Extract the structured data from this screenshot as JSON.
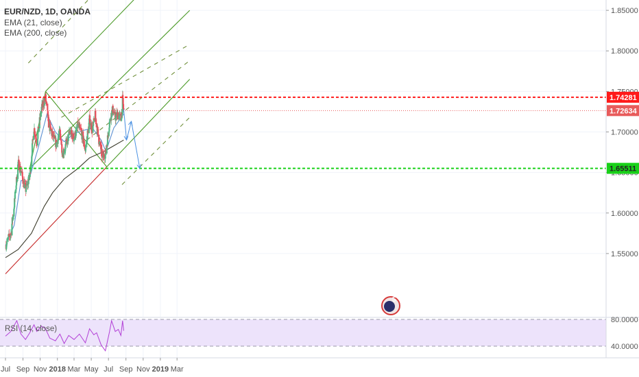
{
  "header": {
    "symbol_line": "EUR/NZD, 1D, OANDA",
    "ema21_label": "EMA (21, close)",
    "ema200_label": "EMA (200, close)"
  },
  "rsi_panel": {
    "label": "RSI (14, close)",
    "bands": [
      40.0,
      80.0
    ],
    "fill_color": "#ede3fb",
    "line_color": "#b23fd6"
  },
  "colors": {
    "bull_candle": "#53b987",
    "bear_candle": "#eb4d5c",
    "ema21": "#5b8fd1",
    "ema200": "#3a3a2a",
    "channel": "#4c9a29",
    "resistance": "#ff1a1a",
    "support": "#19d119",
    "uptrend": "#c62828",
    "projection": "#4a90e2"
  },
  "chart_data": {
    "type": "candlestick",
    "title": "EUR/NZD, 1D, OANDA",
    "ylim": [
      1.52,
      1.88
    ],
    "y_ticks": [
      1.55,
      1.6,
      1.65,
      1.7,
      1.75,
      1.8,
      1.85
    ],
    "y_tick_labels": [
      "1.55000",
      "1.60000",
      "1.65000",
      "1.70000",
      "1.75000",
      "1.80000",
      "1.85000"
    ],
    "x_axis": {
      "start": "2017-07-01",
      "ticks": [
        {
          "label": "Jul",
          "date": "2017-07-01"
        },
        {
          "label": "Sep",
          "date": "2017-09-01"
        },
        {
          "label": "Nov",
          "date": "2017-11-01"
        },
        {
          "label": "2018",
          "date": "2018-01-01",
          "bold": true
        },
        {
          "label": "Mar",
          "date": "2018-03-01"
        },
        {
          "label": "May",
          "date": "2018-05-01"
        },
        {
          "label": "Jul",
          "date": "2018-07-01"
        },
        {
          "label": "Sep",
          "date": "2018-09-01"
        },
        {
          "label": "Nov",
          "date": "2018-11-01"
        },
        {
          "label": "2019",
          "date": "2019-01-01",
          "bold": true
        },
        {
          "label": "Mar",
          "date": "2019-03-01"
        }
      ]
    },
    "price_path": [
      {
        "date": "2017-07-01",
        "close": 1.56
      },
      {
        "date": "2017-07-20",
        "close": 1.575
      },
      {
        "date": "2017-08-01",
        "close": 1.61
      },
      {
        "date": "2017-08-15",
        "close": 1.662
      },
      {
        "date": "2017-08-25",
        "close": 1.652
      },
      {
        "date": "2017-09-10",
        "close": 1.628
      },
      {
        "date": "2017-09-25",
        "close": 1.645
      },
      {
        "date": "2017-10-10",
        "close": 1.705
      },
      {
        "date": "2017-10-20",
        "close": 1.688
      },
      {
        "date": "2017-11-05",
        "close": 1.728
      },
      {
        "date": "2017-11-20",
        "close": 1.742
      },
      {
        "date": "2017-12-01",
        "close": 1.71
      },
      {
        "date": "2017-12-15",
        "close": 1.695
      },
      {
        "date": "2017-12-28",
        "close": 1.685
      },
      {
        "date": "2018-01-10",
        "close": 1.7
      },
      {
        "date": "2018-01-20",
        "close": 1.672
      },
      {
        "date": "2018-02-01",
        "close": 1.685
      },
      {
        "date": "2018-02-15",
        "close": 1.7
      },
      {
        "date": "2018-03-01",
        "close": 1.692
      },
      {
        "date": "2018-03-15",
        "close": 1.708
      },
      {
        "date": "2018-03-28",
        "close": 1.698
      },
      {
        "date": "2018-04-10",
        "close": 1.678
      },
      {
        "date": "2018-04-25",
        "close": 1.715
      },
      {
        "date": "2018-05-05",
        "close": 1.702
      },
      {
        "date": "2018-05-15",
        "close": 1.72
      },
      {
        "date": "2018-05-28",
        "close": 1.69
      },
      {
        "date": "2018-06-10",
        "close": 1.668
      },
      {
        "date": "2018-06-22",
        "close": 1.675
      },
      {
        "date": "2018-07-05",
        "close": 1.712
      },
      {
        "date": "2018-07-15",
        "close": 1.728
      },
      {
        "date": "2018-07-25",
        "close": 1.718
      },
      {
        "date": "2018-08-05",
        "close": 1.722
      },
      {
        "date": "2018-08-14",
        "close": 1.715
      },
      {
        "date": "2018-08-20",
        "close": 1.74
      },
      {
        "date": "2018-08-24",
        "close": 1.726
      }
    ],
    "ema21": [
      {
        "date": "2017-07-01",
        "value": 1.56
      },
      {
        "date": "2017-08-01",
        "value": 1.585
      },
      {
        "date": "2017-08-25",
        "value": 1.64
      },
      {
        "date": "2017-09-20",
        "value": 1.638
      },
      {
        "date": "2017-10-25",
        "value": 1.68
      },
      {
        "date": "2017-11-25",
        "value": 1.722
      },
      {
        "date": "2017-12-25",
        "value": 1.7
      },
      {
        "date": "2018-01-25",
        "value": 1.688
      },
      {
        "date": "2018-03-01",
        "value": 1.698
      },
      {
        "date": "2018-04-05",
        "value": 1.702
      },
      {
        "date": "2018-05-05",
        "value": 1.705
      },
      {
        "date": "2018-06-05",
        "value": 1.69
      },
      {
        "date": "2018-06-22",
        "value": 1.676
      },
      {
        "date": "2018-07-20",
        "value": 1.705
      },
      {
        "date": "2018-08-24",
        "value": 1.722
      }
    ],
    "ema200": [
      {
        "date": "2017-07-01",
        "value": 1.545
      },
      {
        "date": "2017-08-15",
        "value": 1.555
      },
      {
        "date": "2017-10-01",
        "value": 1.575
      },
      {
        "date": "2017-11-15",
        "value": 1.608
      },
      {
        "date": "2017-12-15",
        "value": 1.625
      },
      {
        "date": "2018-01-25",
        "value": 1.642
      },
      {
        "date": "2018-03-15",
        "value": 1.655
      },
      {
        "date": "2018-04-25",
        "value": 1.668
      },
      {
        "date": "2018-06-15",
        "value": 1.676
      },
      {
        "date": "2018-07-20",
        "value": 1.683
      },
      {
        "date": "2018-08-24",
        "value": 1.69
      }
    ],
    "horizontal_levels": [
      {
        "name": "resistance",
        "value": 1.74281,
        "label": "1.74281",
        "style": "dashed",
        "color": "#ff1a1a"
      },
      {
        "name": "last-price",
        "value": 1.72634,
        "label": "1.72634",
        "style": "dotted",
        "color": "#e85b5b"
      },
      {
        "name": "support",
        "value": 1.65511,
        "label": "1.65511",
        "style": "dashed",
        "color": "#19d119"
      }
    ],
    "trendlines": [
      {
        "name": "uptrend-support",
        "color": "#c62828",
        "style": "solid",
        "from": {
          "date": "2017-07-01",
          "value": 1.525
        },
        "to": {
          "date": "2018-06-25",
          "value": 1.657
        }
      },
      {
        "name": "pitchfork-upper-leg",
        "color": "#4c9a29",
        "style": "solid",
        "from": {
          "date": "2017-09-25",
          "value": 1.655
        },
        "to": {
          "date": "2017-11-20",
          "value": 1.75
        }
      },
      {
        "name": "pitchfork-diagonal",
        "color": "#4c9a29",
        "style": "solid",
        "from": {
          "date": "2017-11-20",
          "value": 1.75
        },
        "to": {
          "date": "2018-06-25",
          "value": 1.657
        }
      },
      {
        "name": "channel-line-1",
        "color": "#4c9a29",
        "style": "solid",
        "from": {
          "date": "2017-11-20",
          "value": 1.75
        },
        "to": {
          "date": "2018-11-15",
          "value": 1.88
        }
      },
      {
        "name": "channel-line-2",
        "color": "#4c9a29",
        "style": "solid",
        "from": {
          "date": "2017-09-25",
          "value": 1.655
        },
        "to": {
          "date": "2019-04-15",
          "value": 1.85
        }
      },
      {
        "name": "channel-line-3",
        "color": "#4c9a29",
        "style": "solid",
        "from": {
          "date": "2018-06-25",
          "value": 1.657
        },
        "to": {
          "date": "2019-04-15",
          "value": 1.765
        }
      },
      {
        "name": "channel-dashed-1",
        "color": "#6f8f3a",
        "style": "dashed",
        "from": {
          "date": "2017-09-20",
          "value": 1.785
        },
        "to": {
          "date": "2019-04-15",
          "value": 1.995
        }
      },
      {
        "name": "channel-dashed-2",
        "color": "#6f8f3a",
        "style": "dashed",
        "from": {
          "date": "2018-01-15",
          "value": 1.718
        },
        "to": {
          "date": "2019-04-15",
          "value": 1.808
        }
      },
      {
        "name": "channel-dashed-3",
        "color": "#6f8f3a",
        "style": "dashed",
        "from": {
          "date": "2018-04-15",
          "value": 1.69
        },
        "to": {
          "date": "2019-04-15",
          "value": 1.788
        }
      },
      {
        "name": "channel-dashed-4",
        "color": "#6f8f3a",
        "style": "dashed",
        "from": {
          "date": "2018-08-18",
          "value": 1.635
        },
        "to": {
          "date": "2019-04-15",
          "value": 1.718
        }
      }
    ],
    "projection": [
      {
        "date": "2018-08-24",
        "value": 1.728
      },
      {
        "date": "2018-09-03",
        "value": 1.69
      },
      {
        "date": "2018-09-20",
        "value": 1.713
      },
      {
        "date": "2018-10-20",
        "value": 1.655
      }
    ],
    "rsi": {
      "ylim": [
        30,
        85
      ],
      "ticks": [
        40.0,
        80.0
      ],
      "tick_labels": [
        "40.0000",
        "80.0000"
      ],
      "values": [
        {
          "date": "2017-07-01",
          "value": 55
        },
        {
          "date": "2017-07-20",
          "value": 62
        },
        {
          "date": "2017-08-10",
          "value": 78
        },
        {
          "date": "2017-08-25",
          "value": 58
        },
        {
          "date": "2017-09-10",
          "value": 50
        },
        {
          "date": "2017-09-25",
          "value": 60
        },
        {
          "date": "2017-10-10",
          "value": 72
        },
        {
          "date": "2017-10-20",
          "value": 62
        },
        {
          "date": "2017-11-05",
          "value": 70
        },
        {
          "date": "2017-11-20",
          "value": 66
        },
        {
          "date": "2017-12-05",
          "value": 52
        },
        {
          "date": "2017-12-25",
          "value": 48
        },
        {
          "date": "2018-01-10",
          "value": 58
        },
        {
          "date": "2018-01-25",
          "value": 44
        },
        {
          "date": "2018-02-10",
          "value": 56
        },
        {
          "date": "2018-03-01",
          "value": 50
        },
        {
          "date": "2018-03-20",
          "value": 58
        },
        {
          "date": "2018-04-10",
          "value": 45
        },
        {
          "date": "2018-04-25",
          "value": 66
        },
        {
          "date": "2018-05-10",
          "value": 57
        },
        {
          "date": "2018-05-20",
          "value": 60
        },
        {
          "date": "2018-06-05",
          "value": 42
        },
        {
          "date": "2018-06-20",
          "value": 33
        },
        {
          "date": "2018-07-05",
          "value": 62
        },
        {
          "date": "2018-07-12",
          "value": 78
        },
        {
          "date": "2018-07-25",
          "value": 62
        },
        {
          "date": "2018-08-05",
          "value": 65
        },
        {
          "date": "2018-08-14",
          "value": 56
        },
        {
          "date": "2018-08-20",
          "value": 78
        },
        {
          "date": "2018-08-24",
          "value": 63
        }
      ]
    }
  }
}
